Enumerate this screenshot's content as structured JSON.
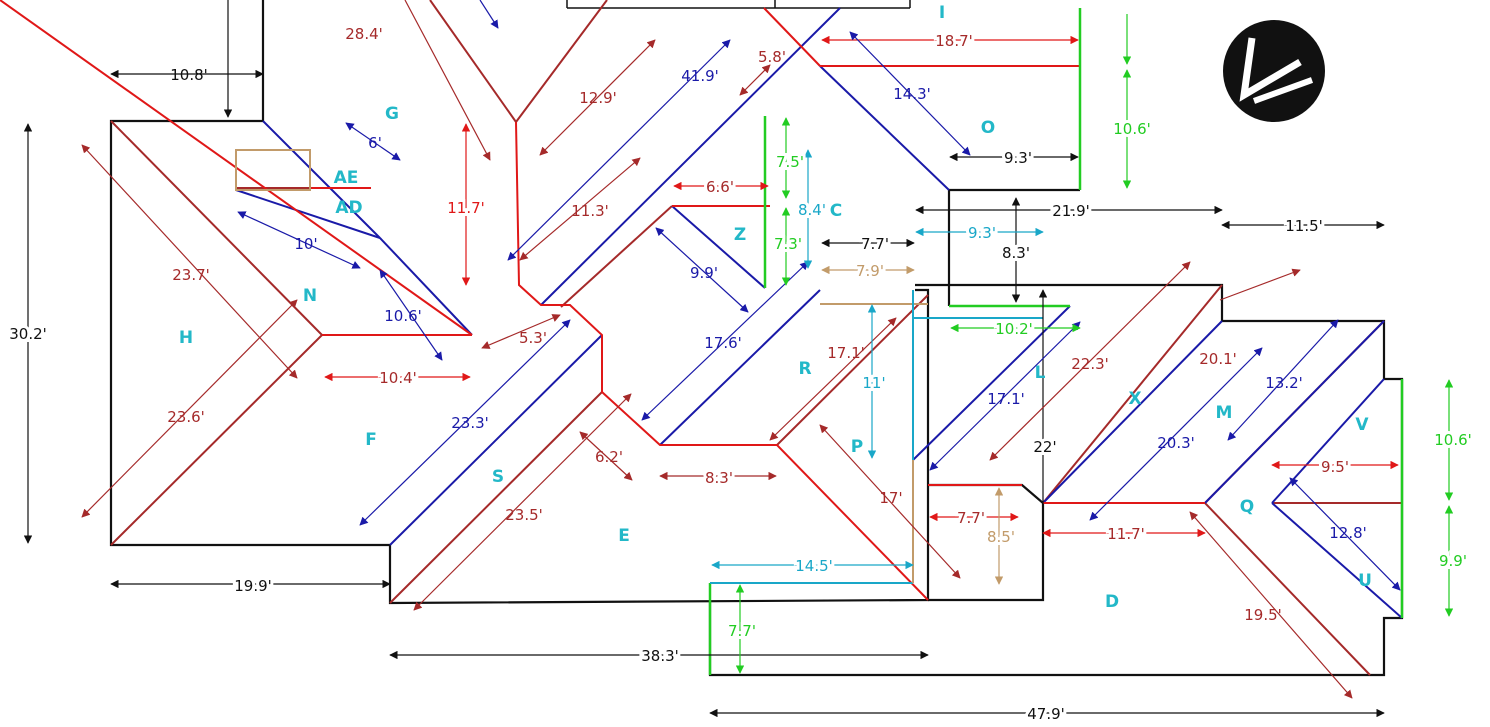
{
  "colors": {
    "outline": "#111111",
    "ridge": "#a52a2a",
    "hip": "#1a1aa8",
    "valley": "#e01818",
    "flashing": "#22cc22",
    "step": "#19a7c8",
    "wall": "#c29b6a",
    "label": "#23b8c8"
  },
  "facet_labels": {
    "I": "I",
    "G": "G",
    "AE": "AE",
    "AD": "AD",
    "N": "N",
    "H": "H",
    "F": "F",
    "S": "S",
    "E": "E",
    "Z": "Z",
    "C": "C",
    "R": "R",
    "P": "P",
    "L": "L",
    "O": "O",
    "X": "X",
    "M": "M",
    "V": "V",
    "Q": "Q",
    "U": "U",
    "D": "D"
  },
  "dimensions": {
    "d_28_4": "28.4'",
    "d_10_8": "10.8'",
    "d_6": "6'",
    "d_10": "10'",
    "d_23_7": "23.7'",
    "d_30_2": "30.2'",
    "d_23_6": "23.6'",
    "d_19_9": "19.9'",
    "d_10_6a": "10.6'",
    "d_10_4": "10.4'",
    "d_11_7a": "11.7'",
    "d_12_9": "12.9'",
    "d_41_9": "41.9'",
    "d_5_8": "5.8'",
    "d_18_7": "18.7'",
    "d_14_3": "14.3'",
    "d_10_6b": "10.6'",
    "d_9_3a": "9.3'",
    "d_11_3": "11.3'",
    "d_6_6": "6.6'",
    "d_7_5": "7.5'",
    "d_8_4": "8.4'",
    "d_7_3": "7.3'",
    "d_9_9a": "9.9'",
    "d_5_3": "5.3'",
    "d_23_3": "23.3'",
    "d_17_6": "17.6'",
    "d_7_7a": "7.7'",
    "d_7_9": "7.9'",
    "d_9_3b": "9.3'",
    "d_21_9": "21.9'",
    "d_8_3a": "8.3'",
    "d_11_5": "11.5'",
    "d_17_1a": "17.1'",
    "d_11": "11'",
    "d_10_2": "10.2'",
    "d_22_3": "22.3'",
    "d_20_1": "20.1'",
    "d_13_2": "13.2'",
    "d_17_1b": "17.1'",
    "d_22": "22'",
    "d_20_3": "20.3'",
    "d_10_6c": "10.6'",
    "d_6_2": "6.2'",
    "d_8_3b": "8.3'",
    "d_23_5": "23.5'",
    "d_17": "17'",
    "d_7_7b": "7.7'",
    "d_8_5": "8.5'",
    "d_11_7b": "11.7'",
    "d_9_5": "9.5'",
    "d_12_8": "12.8'",
    "d_9_9b": "9.9'",
    "d_14_5": "14.5'",
    "d_7_7c": "7.7'",
    "d_38_3": "38.3'",
    "d_19_5": "19.5'",
    "d_47_9": "47.9'"
  }
}
